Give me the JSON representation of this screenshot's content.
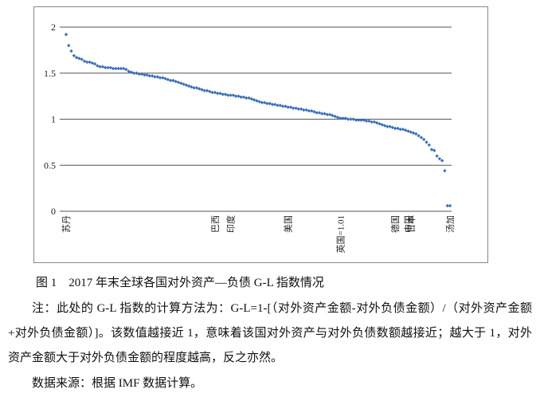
{
  "chart_data": {
    "type": "scatter",
    "color": "#3b6fb6",
    "grid": true,
    "ylim": [
      0,
      2
    ],
    "yticks": [
      0,
      0.5,
      1,
      1.5,
      2
    ],
    "categories": [
      "苏丹",
      null,
      null,
      null,
      null,
      null,
      null,
      null,
      null,
      null,
      null,
      null,
      null,
      null,
      null,
      null,
      null,
      null,
      null,
      null,
      null,
      null,
      null,
      null,
      null,
      null,
      null,
      null,
      null,
      null,
      null,
      null,
      null,
      null,
      null,
      null,
      null,
      null,
      null,
      null,
      null,
      null,
      null,
      null,
      null,
      null,
      null,
      null,
      null,
      null,
      null,
      null,
      null,
      null,
      null,
      null,
      null,
      "巴西",
      null,
      null,
      null,
      null,
      null,
      "印度",
      null,
      null,
      null,
      null,
      null,
      null,
      null,
      null,
      null,
      null,
      null,
      null,
      null,
      null,
      null,
      null,
      null,
      null,
      null,
      null,
      null,
      "美国",
      null,
      null,
      null,
      null,
      null,
      null,
      null,
      null,
      null,
      null,
      null,
      null,
      null,
      null,
      null,
      null,
      null,
      null,
      null,
      "英国=1.01",
      null,
      null,
      null,
      null,
      null,
      null,
      null,
      null,
      null,
      null,
      null,
      null,
      null,
      null,
      null,
      null,
      null,
      null,
      null,
      null,
      "德国",
      null,
      null,
      null,
      null,
      "中国",
      "日本",
      null,
      null,
      null,
      null,
      null,
      null,
      null,
      null,
      null,
      null,
      null,
      null,
      null,
      null,
      "汤加"
    ],
    "values": [
      1.92,
      1.8,
      1.74,
      1.69,
      1.67,
      1.66,
      1.65,
      1.63,
      1.62,
      1.62,
      1.61,
      1.6,
      1.58,
      1.57,
      1.57,
      1.56,
      1.56,
      1.56,
      1.55,
      1.55,
      1.55,
      1.55,
      1.55,
      1.54,
      1.52,
      1.51,
      1.5,
      1.5,
      1.49,
      1.49,
      1.48,
      1.48,
      1.47,
      1.47,
      1.46,
      1.46,
      1.45,
      1.45,
      1.44,
      1.43,
      1.42,
      1.42,
      1.41,
      1.4,
      1.39,
      1.38,
      1.37,
      1.36,
      1.35,
      1.34,
      1.34,
      1.33,
      1.32,
      1.31,
      1.31,
      1.3,
      1.29,
      1.29,
      1.28,
      1.28,
      1.27,
      1.27,
      1.26,
      1.26,
      1.26,
      1.25,
      1.25,
      1.24,
      1.24,
      1.23,
      1.23,
      1.22,
      1.21,
      1.2,
      1.19,
      1.18,
      1.18,
      1.17,
      1.17,
      1.16,
      1.16,
      1.15,
      1.15,
      1.14,
      1.14,
      1.13,
      1.13,
      1.12,
      1.12,
      1.11,
      1.11,
      1.1,
      1.1,
      1.09,
      1.09,
      1.08,
      1.07,
      1.07,
      1.06,
      1.06,
      1.05,
      1.05,
      1.04,
      1.03,
      1.02,
      1.01,
      1.01,
      1.01,
      1.0,
      1.0,
      1.0,
      0.99,
      0.99,
      0.99,
      0.99,
      0.98,
      0.98,
      0.97,
      0.97,
      0.96,
      0.95,
      0.94,
      0.93,
      0.92,
      0.92,
      0.91,
      0.9,
      0.9,
      0.89,
      0.89,
      0.88,
      0.87,
      0.86,
      0.85,
      0.84,
      0.82,
      0.8,
      0.78,
      0.75,
      0.72,
      0.67,
      0.66,
      0.6,
      0.57,
      0.55,
      0.44,
      0.06,
      0.06
    ]
  },
  "caption": "图 1　2017 年末全球各国对外资产—负债 G-L 指数情况",
  "note": "注：此处的 G-L 指数的计算方法为：G-L=1-[（对外资产金额-对外负债金额）/（对外资产金额+对外负债金额）]。该数值越接近 1，意味着该国对外资产与对外负债数额越接近；越大于 1，对外资产金额大于对外负债金额的程度越高，反之亦然。",
  "source": "数据来源：根据 IMF 数据计算。"
}
